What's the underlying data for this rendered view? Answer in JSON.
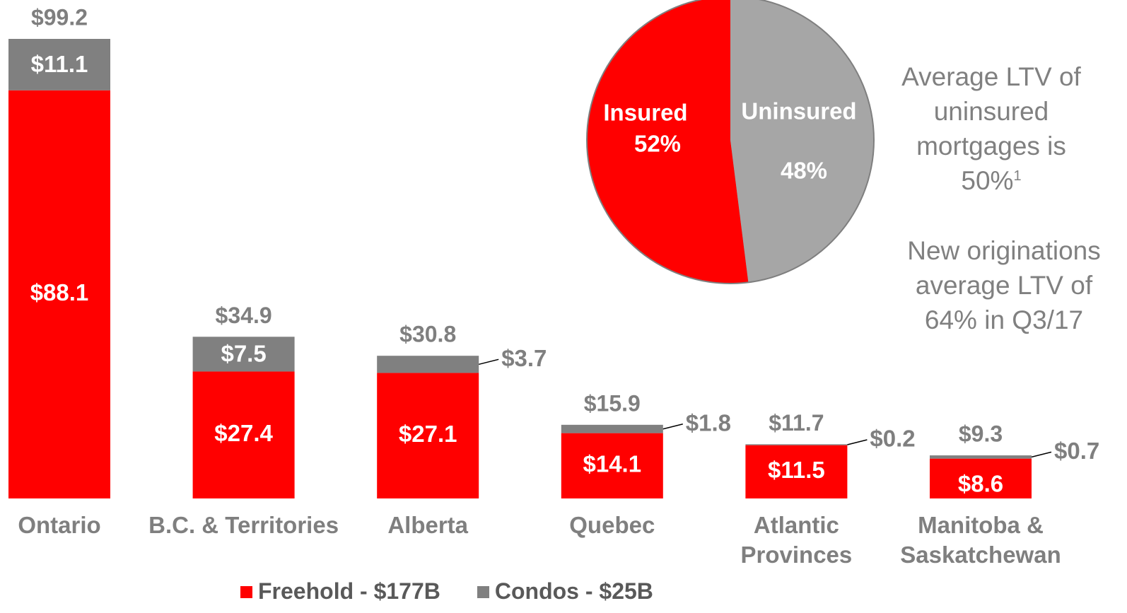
{
  "chart_data": [
    {
      "type": "stacked_bar",
      "categories": [
        "Ontario",
        "B.C. & Territories",
        "Alberta",
        "Quebec",
        "Atlantic Provinces",
        "Manitoba & Saskatchewan"
      ],
      "series": [
        {
          "name": "Freehold - $177B",
          "color": "#ff0000",
          "values": [
            88.1,
            27.4,
            27.1,
            14.1,
            11.5,
            8.6
          ],
          "value_labels": [
            "$88.1",
            "$27.4",
            "$27.1",
            "$14.1",
            "$11.5",
            "$8.6"
          ]
        },
        {
          "name": "Condos - $25B",
          "color": "#808080",
          "values": [
            11.1,
            7.5,
            3.7,
            1.8,
            0.2,
            0.7
          ],
          "value_labels": [
            "$11.1",
            "$7.5",
            "$3.7",
            "$1.8",
            "$0.2",
            "$0.7"
          ]
        }
      ],
      "totals": {
        "values": [
          99.2,
          34.9,
          30.8,
          15.9,
          11.7,
          9.3
        ],
        "value_labels": [
          "$99.2",
          "$34.9",
          "$30.8",
          "$15.9",
          "$11.7",
          "$9.3"
        ]
      }
    },
    {
      "type": "pie",
      "categories": [
        "Insured",
        "Uninsured"
      ],
      "values": [
        52,
        48
      ],
      "value_labels": [
        "52%",
        "48%"
      ],
      "colors": [
        "#ff0000",
        "#a6a6a6"
      ]
    }
  ],
  "annotations": [
    {
      "text": "Average LTV of uninsured mortgages is 50%",
      "superscript": "1"
    },
    {
      "text": "New originations average LTV of 64% in Q3/17"
    }
  ]
}
